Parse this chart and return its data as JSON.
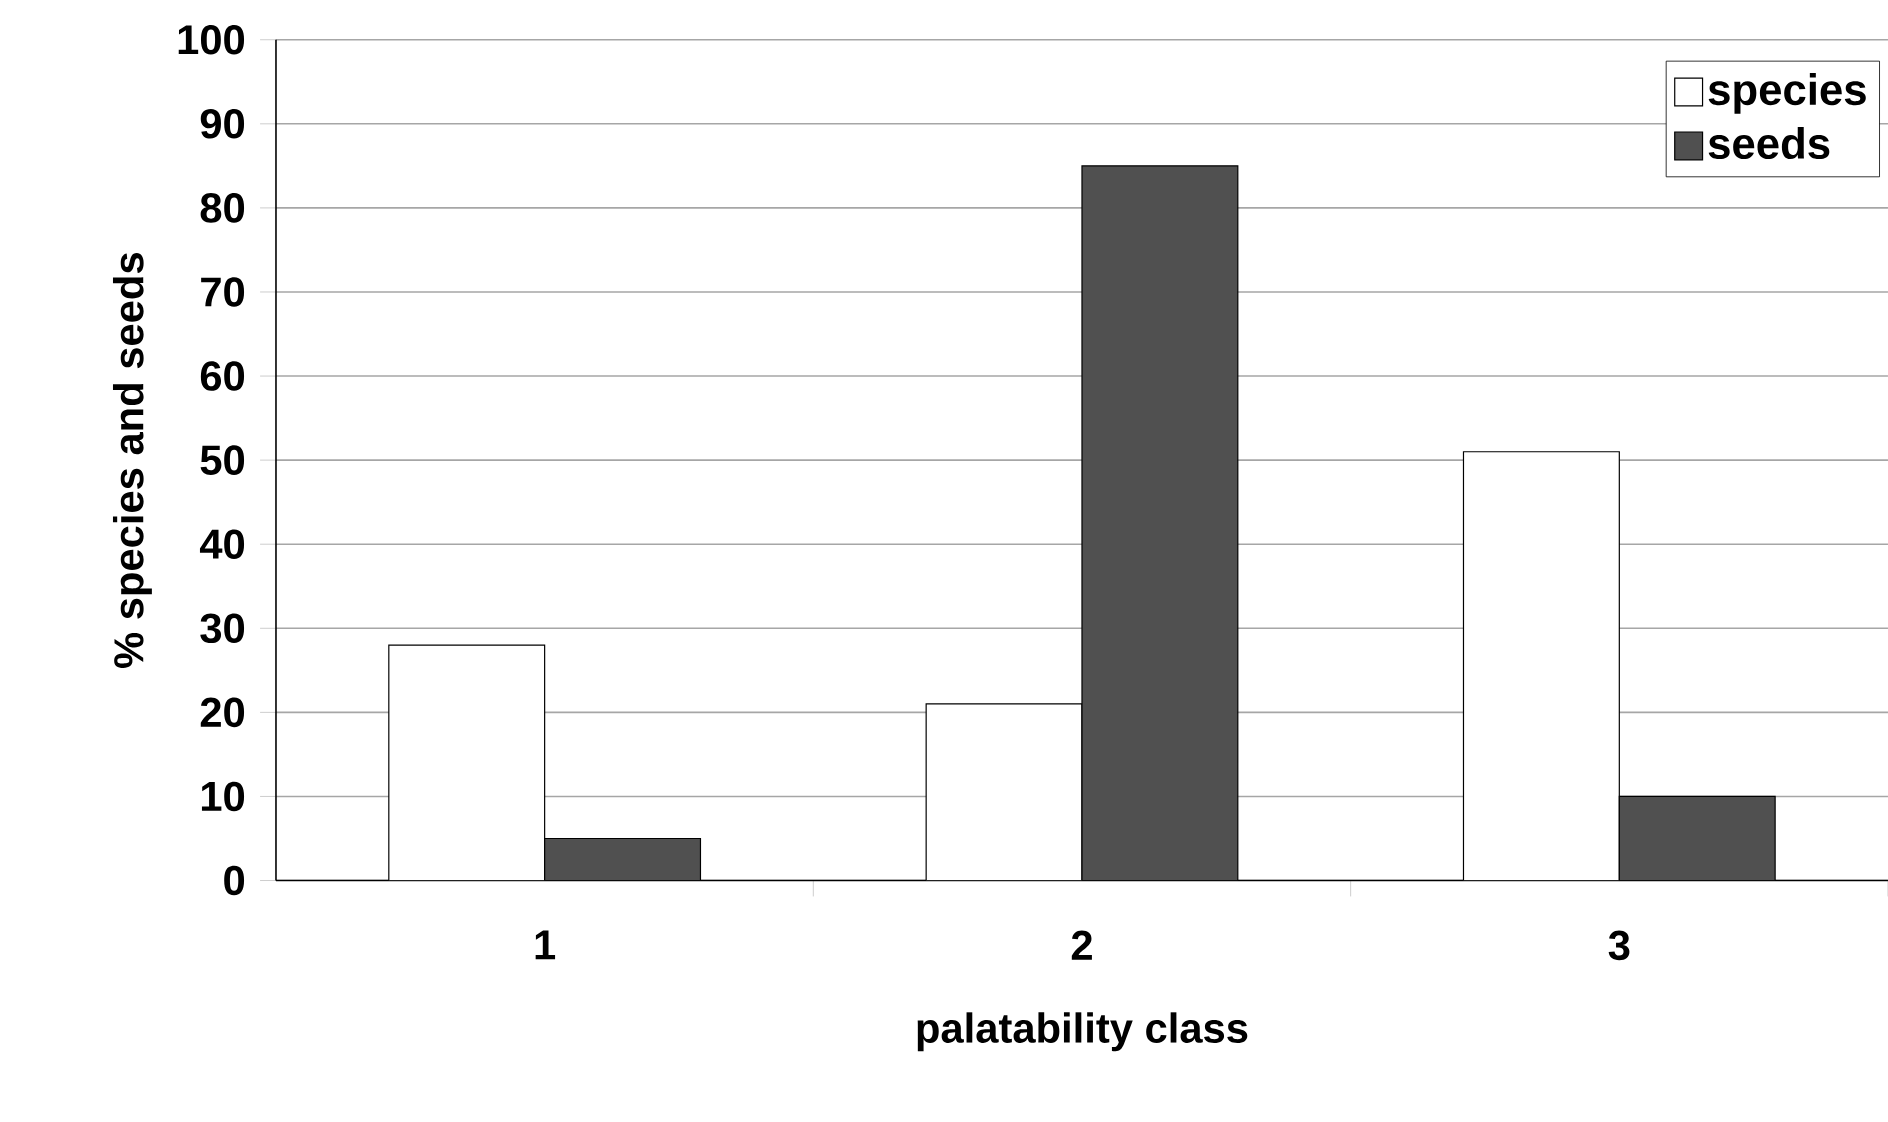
{
  "chart_data": {
    "type": "bar",
    "xlabel": "palatability class",
    "ylabel": "% species and seeds",
    "categories": [
      "1",
      "2",
      "3"
    ],
    "series": [
      {
        "name": "species",
        "color": "#ffffff",
        "values": [
          28,
          21,
          51
        ]
      },
      {
        "name": "seeds",
        "color": "#505050",
        "values": [
          5,
          85,
          10
        ]
      }
    ],
    "ylim": [
      0,
      100
    ],
    "yticks": [
      0,
      10,
      20,
      30,
      40,
      50,
      60,
      70,
      80,
      90,
      100
    ],
    "grid": "y",
    "legend": "top right"
  }
}
